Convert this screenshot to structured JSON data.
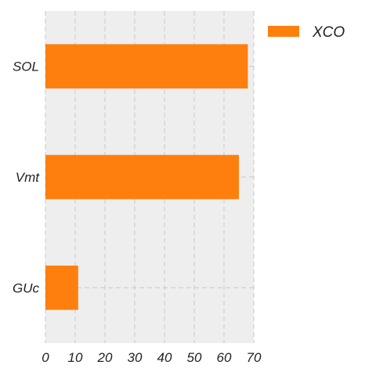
{
  "chart_data": {
    "type": "bar",
    "orientation": "horizontal",
    "categories": [
      "SOL",
      "Vmt",
      "GUc"
    ],
    "series": [
      {
        "name": "XCO",
        "values": [
          68,
          65,
          11
        ],
        "color": "#ff7f0e"
      }
    ],
    "xlim": [
      0,
      70
    ],
    "xticks": [
      0,
      10,
      20,
      30,
      40,
      50,
      60,
      70
    ],
    "title": "",
    "xlabel": "",
    "ylabel": "",
    "grid": true,
    "grid_style": "dashed",
    "background_color": "#eeeeee",
    "legend_position": "outside-top-right"
  }
}
